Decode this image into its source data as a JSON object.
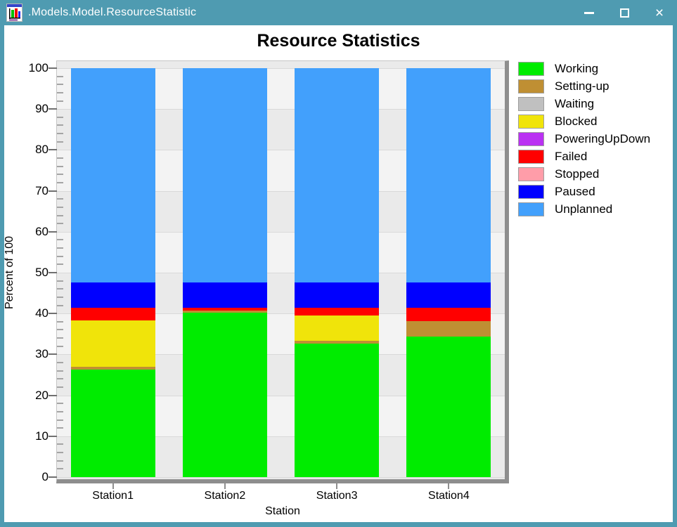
{
  "window": {
    "title": ".Models.Model.ResourceStatistic",
    "controls": [
      {
        "icon": "minimize-icon"
      },
      {
        "icon": "maximize-icon"
      },
      {
        "icon": "close-icon"
      }
    ]
  },
  "chart_data": {
    "type": "bar",
    "stacked": true,
    "title": "Resource Statistics",
    "xlabel": "Station",
    "ylabel": "Percent of 100",
    "ylim": [
      0,
      100
    ],
    "y_ticks": [
      0,
      10,
      20,
      30,
      40,
      50,
      60,
      70,
      80,
      90,
      100
    ],
    "y_minor_step": 2,
    "grid": "horizontal-bands",
    "legend_position": "right",
    "categories": [
      "Station1",
      "Station2",
      "Station3",
      "Station4"
    ],
    "series": [
      {
        "name": "Working",
        "color": "#00EC00",
        "values": [
          26.3,
          40.2,
          32.7,
          34.3
        ]
      },
      {
        "name": "Setting-up",
        "color": "#BF8F33",
        "values": [
          0.7,
          0.6,
          0.7,
          3.9
        ]
      },
      {
        "name": "Waiting",
        "color": "#C0C0C0",
        "values": [
          0,
          0,
          0,
          0
        ]
      },
      {
        "name": "Blocked",
        "color": "#F0E40A",
        "values": [
          11.3,
          0,
          6.1,
          0
        ]
      },
      {
        "name": "PoweringUpDown",
        "color": "#BA31F2",
        "values": [
          0,
          0,
          0,
          0
        ]
      },
      {
        "name": "Failed",
        "color": "#FF0000",
        "values": [
          3.1,
          0.6,
          1.9,
          3.2
        ]
      },
      {
        "name": "Stopped",
        "color": "#FF9DA9",
        "values": [
          0,
          0,
          0,
          0
        ]
      },
      {
        "name": "Paused",
        "color": "#0000FF",
        "values": [
          6.2,
          6.2,
          6.2,
          6.2
        ]
      },
      {
        "name": "Unplanned",
        "color": "#42A0FC",
        "values": [
          52.4,
          52.4,
          52.4,
          52.4
        ]
      }
    ]
  },
  "colors": {
    "titlebar": "#4F9BB1",
    "panel_band_light": "#F3F3F3",
    "panel_band_dark": "#EAEAEA",
    "panel_shadow": "#8E8E8E"
  }
}
